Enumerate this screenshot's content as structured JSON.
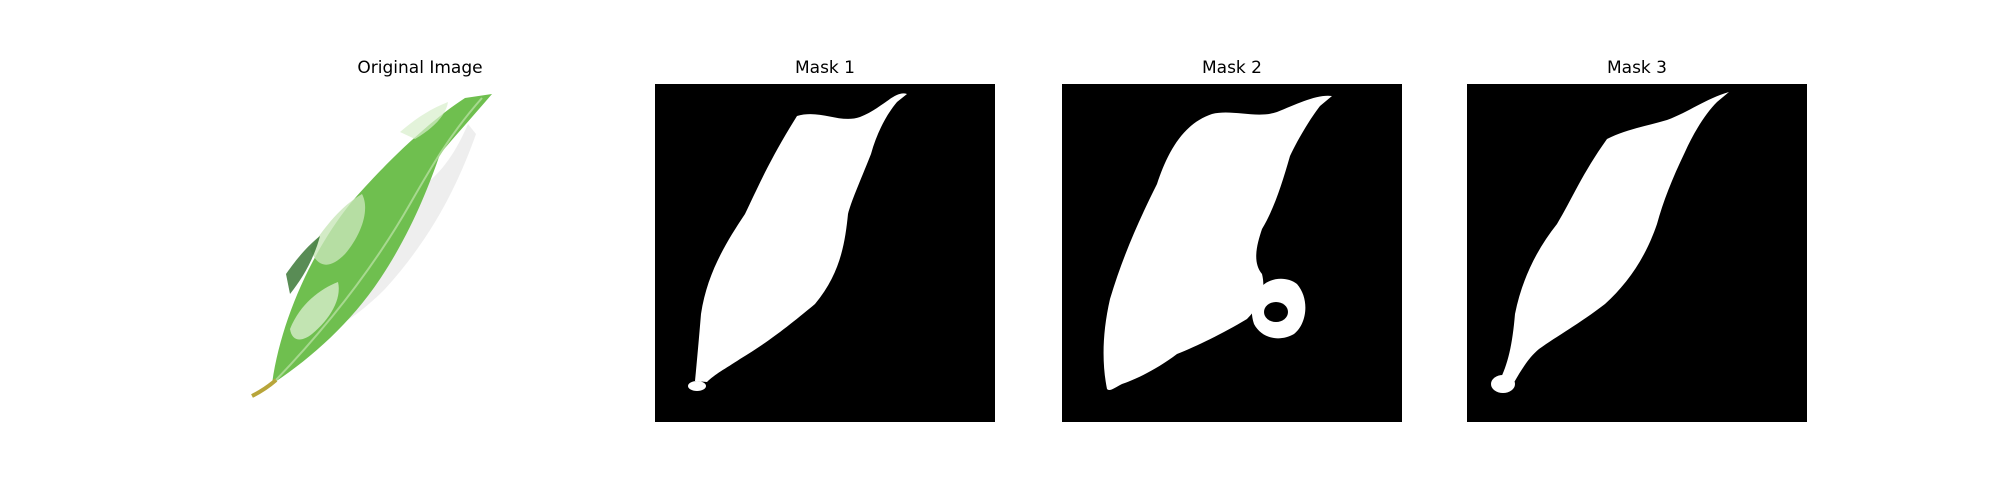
{
  "figure": {
    "panels": [
      {
        "title": "Original Image",
        "kind": "photo"
      },
      {
        "title": "Mask 1",
        "kind": "mask"
      },
      {
        "title": "Mask 2",
        "kind": "mask"
      },
      {
        "title": "Mask 3",
        "kind": "mask"
      }
    ]
  },
  "colors": {
    "background": "#ffffff",
    "mask_background": "#000000",
    "mask_foreground": "#ffffff",
    "leaf_green": "#6fbf4f",
    "leaf_dark": "#2f6f2a",
    "leaf_light": "#c8e6b8",
    "petiole": "#b8a53a"
  }
}
